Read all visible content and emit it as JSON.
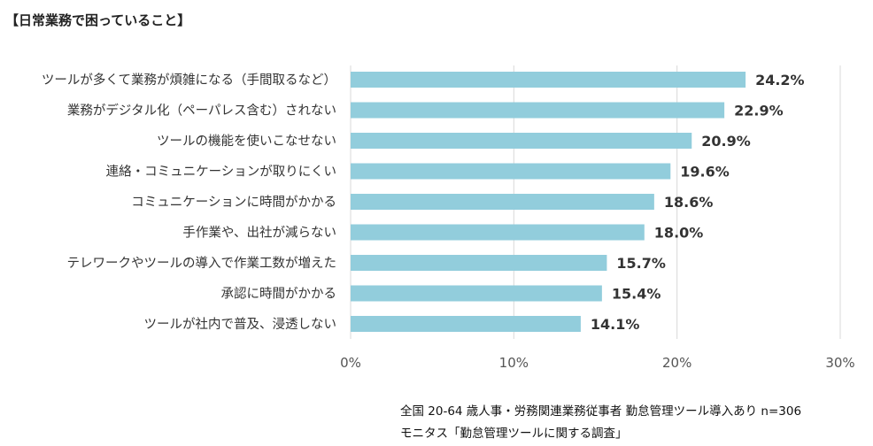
{
  "title": "【日常業務で困っていること】",
  "chart_data": {
    "type": "bar",
    "orientation": "horizontal",
    "categories": [
      "ツールが多くて業務が煩雑になる（手間取るなど）",
      "業務がデジタル化（ペーパレス含む）されない",
      "ツールの機能を使いこなせない",
      "連絡・コミュニケーションが取りにくい",
      "コミュニケーションに時間がかかる",
      "手作業や、出社が減らない",
      "テレワークやツールの導入で作業工数が増えた",
      "承認に時間がかかる",
      "ツールが社内で普及、浸透しない"
    ],
    "values": [
      24.2,
      22.9,
      20.9,
      19.6,
      18.6,
      18.0,
      15.7,
      15.4,
      14.1
    ],
    "value_labels": [
      "24.2%",
      "22.9%",
      "20.9%",
      "19.6%",
      "18.6%",
      "18.0%",
      "15.7%",
      "15.4%",
      "14.1%"
    ],
    "xlim": [
      0,
      30
    ],
    "xticks": [
      0,
      10,
      20,
      30
    ],
    "xtick_labels": [
      "0%",
      "10%",
      "20%",
      "30%"
    ],
    "grid": true,
    "bar_color": "#92cddc",
    "grid_color": "#d9d9d9"
  },
  "notes": {
    "line1": "全国 20-64 歳人事・労務関連業務従事者 勤怠管理ツール導入あり n=306",
    "line2": "モニタス「勤怠管理ツールに関する調査」"
  }
}
